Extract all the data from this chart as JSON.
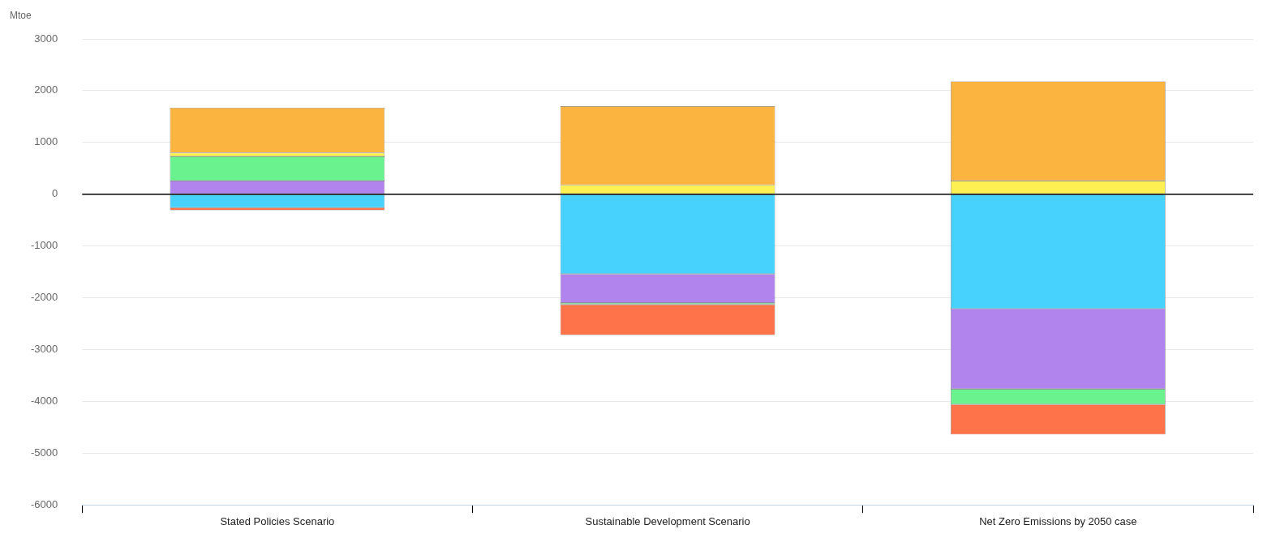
{
  "chart_data": {
    "type": "bar",
    "stacked": true,
    "ylabel": "Mtoe",
    "categories": [
      "Stated Policies Scenario",
      "Sustainable Development Scenario",
      "Net Zero Emissions by 2050 case"
    ],
    "series": [
      {
        "color": "#47d2fd",
        "values": [
          -260,
          -1540,
          -2210
        ]
      },
      {
        "color": "#b084ec",
        "values": [
          260,
          -560,
          -1550
        ]
      },
      {
        "color": "#6af28f",
        "values": [
          470,
          -30,
          -300
        ]
      },
      {
        "color": "#fdf052",
        "values": [
          70,
          180,
          260
        ]
      },
      {
        "color": "#fbb440",
        "values": [
          870,
          1520,
          1920
        ]
      },
      {
        "color": "#fe734a",
        "values": [
          -50,
          -590,
          -580
        ]
      }
    ],
    "ylim": [
      -6000,
      3000
    ],
    "yticks": [
      -6000,
      -5000,
      -4000,
      -3000,
      -2000,
      -1000,
      0,
      1000,
      2000,
      3000
    ],
    "grid": "y",
    "legend": false,
    "ref_lines": [
      {
        "axis": "y",
        "value": 0,
        "color": "#000000"
      }
    ]
  }
}
